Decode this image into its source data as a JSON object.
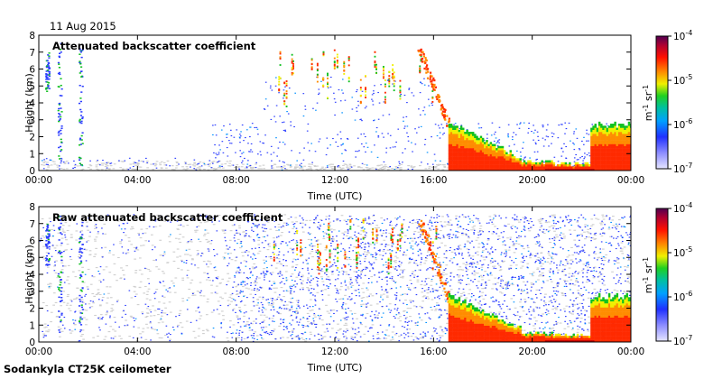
{
  "date_label": "11 Aug 2015",
  "instrument_label": "Sodankyla CT25K ceilometer",
  "colorbar": {
    "unit_base": "m",
    "unit_exp1": "-1",
    "unit_mid": " sr",
    "unit_exp2": "-1",
    "ticks": [
      {
        "base": "10",
        "exp": "-4",
        "value": 0.0001
      },
      {
        "base": "10",
        "exp": "-5",
        "value": 1e-05
      },
      {
        "base": "10",
        "exp": "-6",
        "value": 1e-06
      },
      {
        "base": "10",
        "exp": "-7",
        "value": 1e-07
      }
    ],
    "scale": "log",
    "range": [
      1e-07,
      0.0001
    ],
    "colors": [
      "#d8d8d8",
      "#3a50ff",
      "#00a8ff",
      "#00c060",
      "#f0f000",
      "#ff8000",
      "#ff2000",
      "#c00000",
      "#6a0040"
    ]
  },
  "chart_data": [
    {
      "type": "heatmap",
      "title": "Attenuated backscatter coefficient",
      "xlabel": "Time (UTC)",
      "ylabel": "Height (km)",
      "x_ticks": [
        "00:00",
        "04:00",
        "08:00",
        "12:00",
        "16:00",
        "20:00",
        "00:00"
      ],
      "y_ticks": [
        "0",
        "1",
        "2",
        "3",
        "4",
        "5",
        "6",
        "7",
        "8"
      ],
      "xlim_hours": [
        0,
        24
      ],
      "ylim_km": [
        0,
        8
      ],
      "grid": false,
      "features": [
        {
          "hours": [
            16.6,
            24.0
          ],
          "km": [
            0.1,
            2.9
          ],
          "level": "strong"
        },
        {
          "hours": [
            9.5,
            16.2
          ],
          "km": [
            5.0,
            7.3
          ],
          "level": "high-cloud"
        },
        {
          "hours": [
            0.2,
            0.4
          ],
          "km": [
            4.5,
            7.0
          ],
          "level": "cloud"
        }
      ]
    },
    {
      "type": "heatmap",
      "title": "Raw attenuated backscatter coefficient",
      "xlabel": "Time (UTC)",
      "ylabel": "Height (km)",
      "x_ticks": [
        "00:00",
        "04:00",
        "08:00",
        "12:00",
        "16:00",
        "20:00",
        "00:00"
      ],
      "y_ticks": [
        "0",
        "1",
        "2",
        "3",
        "4",
        "5",
        "6",
        "7",
        "8"
      ],
      "xlim_hours": [
        0,
        24
      ],
      "ylim_km": [
        0,
        8
      ],
      "grid": false,
      "features": [
        {
          "hours": [
            16.6,
            24.0
          ],
          "km": [
            0.1,
            2.9
          ],
          "level": "strong"
        },
        {
          "hours": [
            7.8,
            24.0
          ],
          "km": [
            0.0,
            7.5
          ],
          "level": "noise"
        },
        {
          "hours": [
            0.0,
            7.8
          ],
          "km": [
            0.0,
            7.5
          ],
          "level": "weak"
        }
      ]
    }
  ]
}
